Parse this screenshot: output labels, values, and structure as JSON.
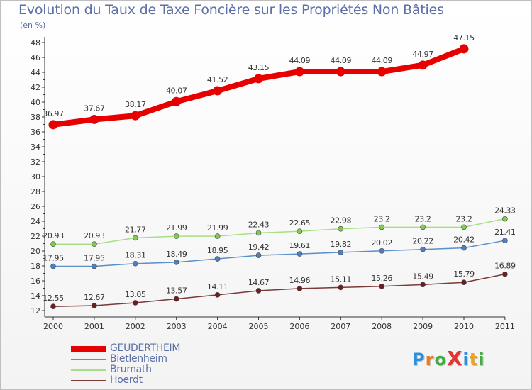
{
  "title": "Evolution du Taux de Taxe Foncière sur les Propriétés Non Bâties",
  "unit_label": "(en %)",
  "logo": {
    "text": "ProXiti",
    "letters": [
      "P",
      "r",
      "o",
      "X",
      "i",
      "t",
      "i"
    ],
    "colors": [
      "#2f8fd8",
      "#f07a1a",
      "#3fae3f",
      "#e3342f",
      "#2f8fd8",
      "#f0a21a",
      "#3fae3f"
    ]
  },
  "chart_data": {
    "type": "line",
    "title": "Evolution du Taux de Taxe Foncière sur les Propriétés Non Bâties",
    "ylabel": "(en %)",
    "xlabel": "",
    "x": [
      "2000",
      "2001",
      "2002",
      "2003",
      "2004",
      "2005",
      "2006",
      "2007",
      "2008",
      "2009",
      "2010",
      "2011"
    ],
    "ylim": [
      12,
      48
    ],
    "yticks": [
      "12",
      "14",
      "16",
      "18",
      "20",
      "22",
      "24",
      "26",
      "28",
      "30",
      "32",
      "34",
      "36",
      "38",
      "40",
      "42",
      "44",
      "46",
      "48"
    ],
    "grid": false,
    "legend_position": "bottom-left",
    "series": [
      {
        "name": "GEUDERTHEIM",
        "color": "#e60000",
        "highlight": true,
        "values": [
          36.97,
          37.67,
          38.17,
          40.07,
          41.52,
          43.15,
          44.09,
          44.09,
          44.09,
          44.97,
          47.15,
          null
        ],
        "labels": [
          "36.97",
          "37.67",
          "38.17",
          "40.07",
          "41.52",
          "43.15",
          "44.09",
          "44.09",
          "44.09",
          "44.97",
          "47.15",
          ""
        ]
      },
      {
        "name": "Bietlenheim",
        "color": "#5b8fc7",
        "point_color": "#4e7fbf",
        "highlight": false,
        "values": [
          17.95,
          17.95,
          18.31,
          18.49,
          18.95,
          19.42,
          19.61,
          19.82,
          20.02,
          20.22,
          20.42,
          21.41
        ],
        "labels": [
          "17.95",
          "17.95",
          "18.31",
          "18.49",
          "18.95",
          "19.42",
          "19.61",
          "19.82",
          "20.02",
          "20.22",
          "20.42",
          "21.41"
        ]
      },
      {
        "name": "Brumath",
        "color": "#a8df84",
        "point_color": "#7fcc4f",
        "highlight": false,
        "values": [
          20.93,
          20.93,
          21.77,
          21.99,
          21.99,
          22.43,
          22.65,
          22.98,
          23.2,
          23.2,
          23.2,
          24.33
        ],
        "labels": [
          "20.93",
          "20.93",
          "21.77",
          "21.99",
          "21.99",
          "22.43",
          "22.65",
          "22.98",
          "23.2",
          "23.2",
          "23.2",
          "24.33"
        ]
      },
      {
        "name": "Hoerdt",
        "color": "#7a3a3a",
        "point_color": "#6b1f1f",
        "highlight": false,
        "values": [
          12.55,
          12.67,
          13.05,
          13.57,
          14.11,
          14.67,
          14.96,
          15.11,
          15.26,
          15.49,
          15.79,
          16.89
        ],
        "labels": [
          "12.55",
          "12.67",
          "13.05",
          "13.57",
          "14.11",
          "14.67",
          "14.96",
          "15.11",
          "15.26",
          "15.49",
          "15.79",
          "16.89"
        ]
      }
    ]
  }
}
